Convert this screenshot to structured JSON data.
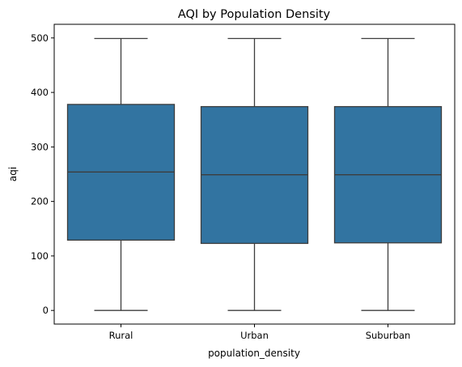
{
  "chart_data": {
    "type": "box",
    "title": "AQI by Population Density",
    "xlabel": "population_density",
    "ylabel": "aqi",
    "ylim": [
      -25,
      525
    ],
    "yticks": [
      0,
      100,
      200,
      300,
      400,
      500
    ],
    "ytick_labels": [
      "0",
      "100",
      "200",
      "300",
      "400",
      "500"
    ],
    "categories": [
      "Rural",
      "Urban",
      "Suburban"
    ],
    "boxes": [
      {
        "category": "Rural",
        "min": 0,
        "q1": 129,
        "median": 254,
        "q3": 378,
        "max": 499
      },
      {
        "category": "Urban",
        "min": 0,
        "q1": 123,
        "median": 249,
        "q3": 374,
        "max": 499
      },
      {
        "category": "Suburban",
        "min": 0,
        "q1": 124,
        "median": 249,
        "q3": 374,
        "max": 499
      }
    ],
    "colors": {
      "box_fill": "#3274a1",
      "lines": "#3d3d3d",
      "axes": "#000000"
    },
    "grid": false,
    "legend": "none"
  }
}
